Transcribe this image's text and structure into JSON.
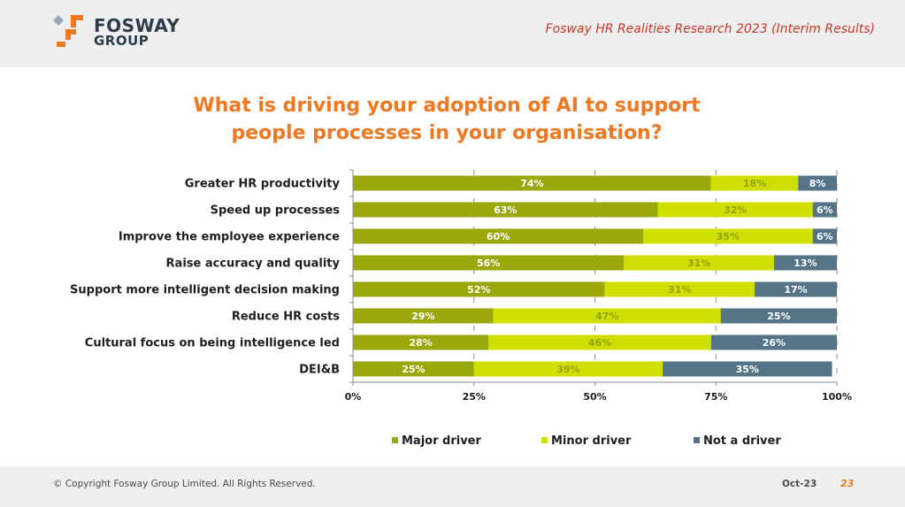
{
  "header": {
    "brand_name_1": "FOSWAY",
    "brand_name_2": "GROUP",
    "research_title": "Fosway HR Realities Research 2023 (Interim Results)"
  },
  "footer": {
    "copyright": "© Copyright Fosway Group Limited. All Rights Reserved.",
    "date": "Oct-23",
    "page_number": "23"
  },
  "colors": {
    "major": "#9aa80e",
    "minor": "#cfe000",
    "not": "#567487",
    "title": "#f07820",
    "research_title": "#c8362a"
  },
  "chart_data": {
    "type": "bar",
    "orientation": "horizontal",
    "stacked": "percent",
    "title": "What is driving your adoption of AI to support people processes in your organisation?",
    "title_lines": [
      "What is driving your adoption of AI to support",
      "people processes in your organisation?"
    ],
    "categories": [
      "Greater HR productivity",
      "Speed up processes",
      "Improve the employee experience",
      "Raise accuracy and quality",
      "Support more intelligent decision making",
      "Reduce HR costs",
      "Cultural focus on being intelligence led",
      "DEI&B"
    ],
    "series": [
      {
        "name": "Major driver",
        "color_key": "major",
        "values": [
          74,
          63,
          60,
          56,
          52,
          29,
          28,
          25
        ]
      },
      {
        "name": "Minor driver",
        "color_key": "minor",
        "values": [
          18,
          32,
          35,
          31,
          31,
          47,
          46,
          39
        ]
      },
      {
        "name": "Not a driver",
        "color_key": "not",
        "values": [
          8,
          6,
          6,
          13,
          17,
          25,
          26,
          35
        ]
      }
    ],
    "xlim": [
      0,
      100
    ],
    "xticks": [
      0,
      25,
      50,
      75,
      100
    ],
    "xtick_labels": [
      "0%",
      "25%",
      "50%",
      "75%",
      "100%"
    ],
    "legend_position": "bottom"
  }
}
